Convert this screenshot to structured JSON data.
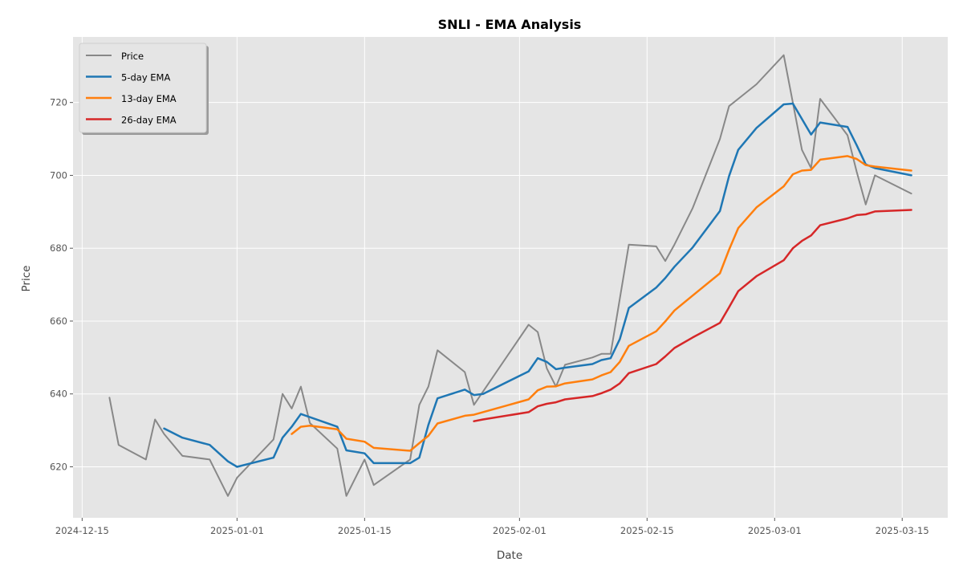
{
  "chart_data": {
    "type": "line",
    "title": "SNLI - EMA Analysis",
    "xlabel": "Date",
    "ylabel": "Price",
    "x_ticks": [
      "2024-12-15",
      "2025-01-01",
      "2025-01-15",
      "2025-02-01",
      "2025-02-15",
      "2025-03-01",
      "2025-03-15"
    ],
    "y_ticks": [
      620,
      640,
      660,
      680,
      700,
      720
    ],
    "xlim": [
      "2024-12-14",
      "2025-03-20"
    ],
    "ylim": [
      606,
      738
    ],
    "grid": true,
    "legend_position": "top-left",
    "series": [
      {
        "name": "Price",
        "color": "#888888",
        "points": [
          [
            "2024-12-18",
            639
          ],
          [
            "2024-12-19",
            626
          ],
          [
            "2024-12-22",
            622
          ],
          [
            "2024-12-23",
            633
          ],
          [
            "2024-12-24",
            629
          ],
          [
            "2024-12-26",
            623
          ],
          [
            "2024-12-29",
            622
          ],
          [
            "2024-12-31",
            612
          ],
          [
            "2025-01-01",
            617
          ],
          [
            "2025-01-05",
            627.5
          ],
          [
            "2025-01-06",
            640
          ],
          [
            "2025-01-07",
            636
          ],
          [
            "2025-01-08",
            642
          ],
          [
            "2025-01-09",
            632
          ],
          [
            "2025-01-12",
            625
          ],
          [
            "2025-01-13",
            612
          ],
          [
            "2025-01-15",
            622
          ],
          [
            "2025-01-16",
            615
          ],
          [
            "2025-01-20",
            622
          ],
          [
            "2025-01-21",
            637
          ],
          [
            "2025-01-22",
            642
          ],
          [
            "2025-01-23",
            652
          ],
          [
            "2025-01-26",
            646
          ],
          [
            "2025-01-27",
            637
          ],
          [
            "2025-02-02",
            659
          ],
          [
            "2025-02-03",
            657
          ],
          [
            "2025-02-04",
            647
          ],
          [
            "2025-02-05",
            642
          ],
          [
            "2025-02-06",
            648
          ],
          [
            "2025-02-09",
            650
          ],
          [
            "2025-02-10",
            651
          ],
          [
            "2025-02-11",
            651
          ],
          [
            "2025-02-13",
            681
          ],
          [
            "2025-02-16",
            680.5
          ],
          [
            "2025-02-17",
            676.5
          ],
          [
            "2025-02-18",
            681
          ],
          [
            "2025-02-20",
            691
          ],
          [
            "2025-02-23",
            710
          ],
          [
            "2025-02-24",
            719
          ],
          [
            "2025-02-25",
            721
          ],
          [
            "2025-02-27",
            725
          ],
          [
            "2025-03-02",
            733
          ],
          [
            "2025-03-04",
            707
          ],
          [
            "2025-03-05",
            702
          ],
          [
            "2025-03-06",
            721
          ],
          [
            "2025-03-09",
            711
          ],
          [
            "2025-03-10",
            701
          ],
          [
            "2025-03-11",
            692
          ],
          [
            "2025-03-12",
            700
          ],
          [
            "2025-03-16",
            695
          ]
        ]
      },
      {
        "name": "5-day EMA",
        "color": "#1f77b4",
        "points": [
          [
            "2024-12-24",
            630.5
          ],
          [
            "2024-12-26",
            628
          ],
          [
            "2024-12-29",
            626
          ],
          [
            "2024-12-31",
            621.5
          ],
          [
            "2025-01-01",
            620
          ],
          [
            "2025-01-05",
            622.5
          ],
          [
            "2025-01-06",
            628
          ],
          [
            "2025-01-07",
            631
          ],
          [
            "2025-01-08",
            634.5
          ],
          [
            "2025-01-12",
            631
          ],
          [
            "2025-01-13",
            624.5
          ],
          [
            "2025-01-15",
            623.7
          ],
          [
            "2025-01-16",
            621
          ],
          [
            "2025-01-20",
            621
          ],
          [
            "2025-01-21",
            622.5
          ],
          [
            "2025-01-22",
            631.5
          ],
          [
            "2025-01-23",
            638.8
          ],
          [
            "2025-01-26",
            641.2
          ],
          [
            "2025-01-27",
            639.7
          ],
          [
            "2025-01-28",
            640
          ],
          [
            "2025-02-02",
            646.2
          ],
          [
            "2025-02-03",
            649.8
          ],
          [
            "2025-02-04",
            648.8
          ],
          [
            "2025-02-05",
            646.8
          ],
          [
            "2025-02-06",
            647.2
          ],
          [
            "2025-02-09",
            648.2
          ],
          [
            "2025-02-10",
            649.3
          ],
          [
            "2025-02-11",
            649.8
          ],
          [
            "2025-02-12",
            655
          ],
          [
            "2025-02-13",
            663.6
          ],
          [
            "2025-02-16",
            669.2
          ],
          [
            "2025-02-17",
            671.8
          ],
          [
            "2025-02-18",
            674.9
          ],
          [
            "2025-02-20",
            680.2
          ],
          [
            "2025-02-23",
            690.2
          ],
          [
            "2025-02-24",
            699.8
          ],
          [
            "2025-02-25",
            707
          ],
          [
            "2025-02-27",
            713
          ],
          [
            "2025-03-02",
            719.5
          ],
          [
            "2025-03-03",
            719.7
          ],
          [
            "2025-03-05",
            711.2
          ],
          [
            "2025-03-06",
            714.5
          ],
          [
            "2025-03-09",
            713.3
          ],
          [
            "2025-03-10",
            708.3
          ],
          [
            "2025-03-11",
            703
          ],
          [
            "2025-03-12",
            702
          ],
          [
            "2025-03-16",
            700
          ]
        ]
      },
      {
        "name": "13-day EMA",
        "color": "#ff7f0e",
        "points": [
          [
            "2025-01-07",
            629
          ],
          [
            "2025-01-08",
            631
          ],
          [
            "2025-01-09",
            631.3
          ],
          [
            "2025-01-12",
            630.3
          ],
          [
            "2025-01-13",
            627.7
          ],
          [
            "2025-01-15",
            626.9
          ],
          [
            "2025-01-16",
            625.2
          ],
          [
            "2025-01-20",
            624.4
          ],
          [
            "2025-01-21",
            626.5
          ],
          [
            "2025-01-22",
            628.5
          ],
          [
            "2025-01-23",
            631.9
          ],
          [
            "2025-01-26",
            634
          ],
          [
            "2025-01-27",
            634.3
          ],
          [
            "2025-02-02",
            638.5
          ],
          [
            "2025-02-03",
            641
          ],
          [
            "2025-02-04",
            642
          ],
          [
            "2025-02-05",
            642.1
          ],
          [
            "2025-02-06",
            642.9
          ],
          [
            "2025-02-09",
            644
          ],
          [
            "2025-02-10",
            645.1
          ],
          [
            "2025-02-11",
            646
          ],
          [
            "2025-02-12",
            648.8
          ],
          [
            "2025-02-13",
            653.2
          ],
          [
            "2025-02-16",
            657.2
          ],
          [
            "2025-02-17",
            659.9
          ],
          [
            "2025-02-18",
            662.9
          ],
          [
            "2025-02-20",
            667
          ],
          [
            "2025-02-23",
            673.1
          ],
          [
            "2025-02-24",
            679.6
          ],
          [
            "2025-02-25",
            685.5
          ],
          [
            "2025-02-27",
            691.2
          ],
          [
            "2025-03-02",
            697
          ],
          [
            "2025-03-03",
            700.3
          ],
          [
            "2025-03-04",
            701.3
          ],
          [
            "2025-03-05",
            701.5
          ],
          [
            "2025-03-06",
            704.3
          ],
          [
            "2025-03-09",
            705.3
          ],
          [
            "2025-03-10",
            704.5
          ],
          [
            "2025-03-11",
            702.8
          ],
          [
            "2025-03-12",
            702.4
          ],
          [
            "2025-03-16",
            701.3
          ]
        ]
      },
      {
        "name": "26-day EMA",
        "color": "#d62728",
        "points": [
          [
            "2025-01-27",
            632.5
          ],
          [
            "2025-01-28",
            633
          ],
          [
            "2025-02-02",
            635
          ],
          [
            "2025-02-03",
            636.6
          ],
          [
            "2025-02-04",
            637.3
          ],
          [
            "2025-02-05",
            637.7
          ],
          [
            "2025-02-06",
            638.5
          ],
          [
            "2025-02-09",
            639.4
          ],
          [
            "2025-02-10",
            640.2
          ],
          [
            "2025-02-11",
            641.2
          ],
          [
            "2025-02-12",
            642.9
          ],
          [
            "2025-02-13",
            645.7
          ],
          [
            "2025-02-16",
            648.2
          ],
          [
            "2025-02-17",
            650.3
          ],
          [
            "2025-02-18",
            652.6
          ],
          [
            "2025-02-20",
            655.5
          ],
          [
            "2025-02-23",
            659.5
          ],
          [
            "2025-02-24",
            663.8
          ],
          [
            "2025-02-25",
            668.2
          ],
          [
            "2025-02-27",
            672.3
          ],
          [
            "2025-03-02",
            676.7
          ],
          [
            "2025-03-03",
            680
          ],
          [
            "2025-03-04",
            682
          ],
          [
            "2025-03-05",
            683.5
          ],
          [
            "2025-03-06",
            686.3
          ],
          [
            "2025-03-09",
            688.2
          ],
          [
            "2025-03-10",
            689.1
          ],
          [
            "2025-03-11",
            689.3
          ],
          [
            "2025-03-12",
            690.1
          ],
          [
            "2025-03-16",
            690.5
          ]
        ]
      }
    ]
  }
}
